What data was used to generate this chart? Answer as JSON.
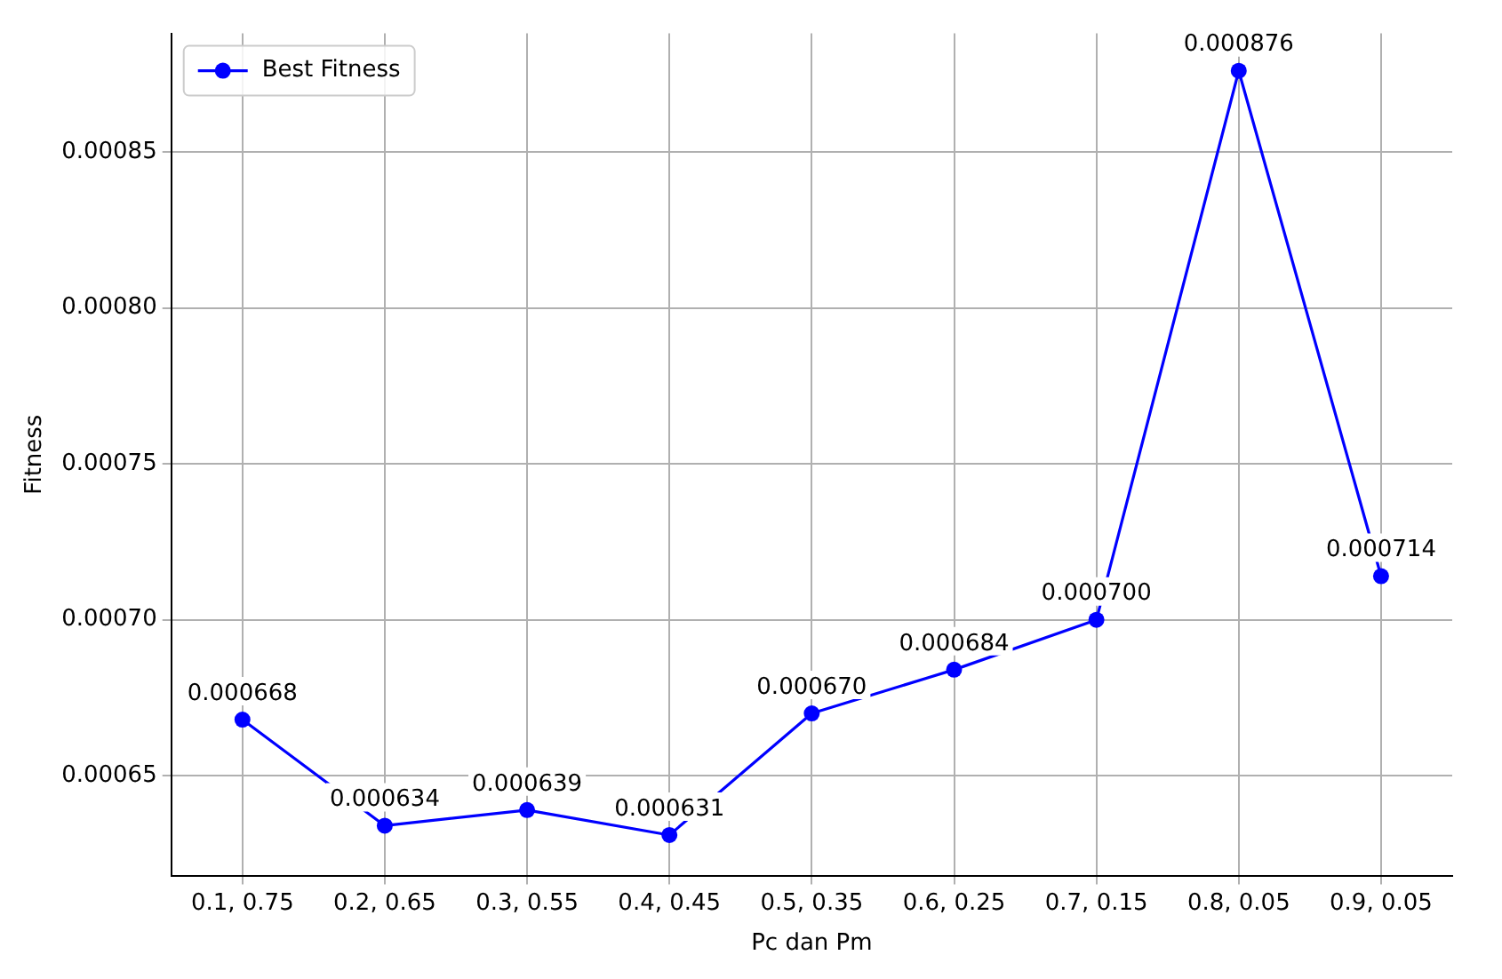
{
  "chart_data": {
    "type": "line",
    "xlabel": "Pc dan Pm",
    "ylabel": "Fitness",
    "categories": [
      "0.1, 0.75",
      "0.2, 0.65",
      "0.3, 0.55",
      "0.4, 0.45",
      "0.5, 0.35",
      "0.6, 0.25",
      "0.7, 0.15",
      "0.8, 0.05",
      "0.9, 0.05"
    ],
    "series": [
      {
        "name": "Best Fitness",
        "color": "#0000ff",
        "values": [
          0.000668,
          0.000634,
          0.000639,
          0.000631,
          0.00067,
          0.000684,
          0.0007,
          0.000876,
          0.000714
        ]
      }
    ],
    "value_labels": [
      "0.000668",
      "0.000634",
      "0.000639",
      "0.000631",
      "0.000670",
      "0.000684",
      "0.000700",
      "0.000876",
      "0.000714"
    ],
    "ylim": [
      0.000618,
      0.000888
    ],
    "yticks": [
      {
        "value": 0.00065,
        "label": "0.00065"
      },
      {
        "value": 0.0007,
        "label": "0.00070"
      },
      {
        "value": 0.00075,
        "label": "0.00075"
      },
      {
        "value": 0.0008,
        "label": "0.00080"
      },
      {
        "value": 0.00085,
        "label": "0.00085"
      }
    ],
    "grid": true,
    "legend": "top left",
    "marker": "circle",
    "line_style": "solid"
  }
}
